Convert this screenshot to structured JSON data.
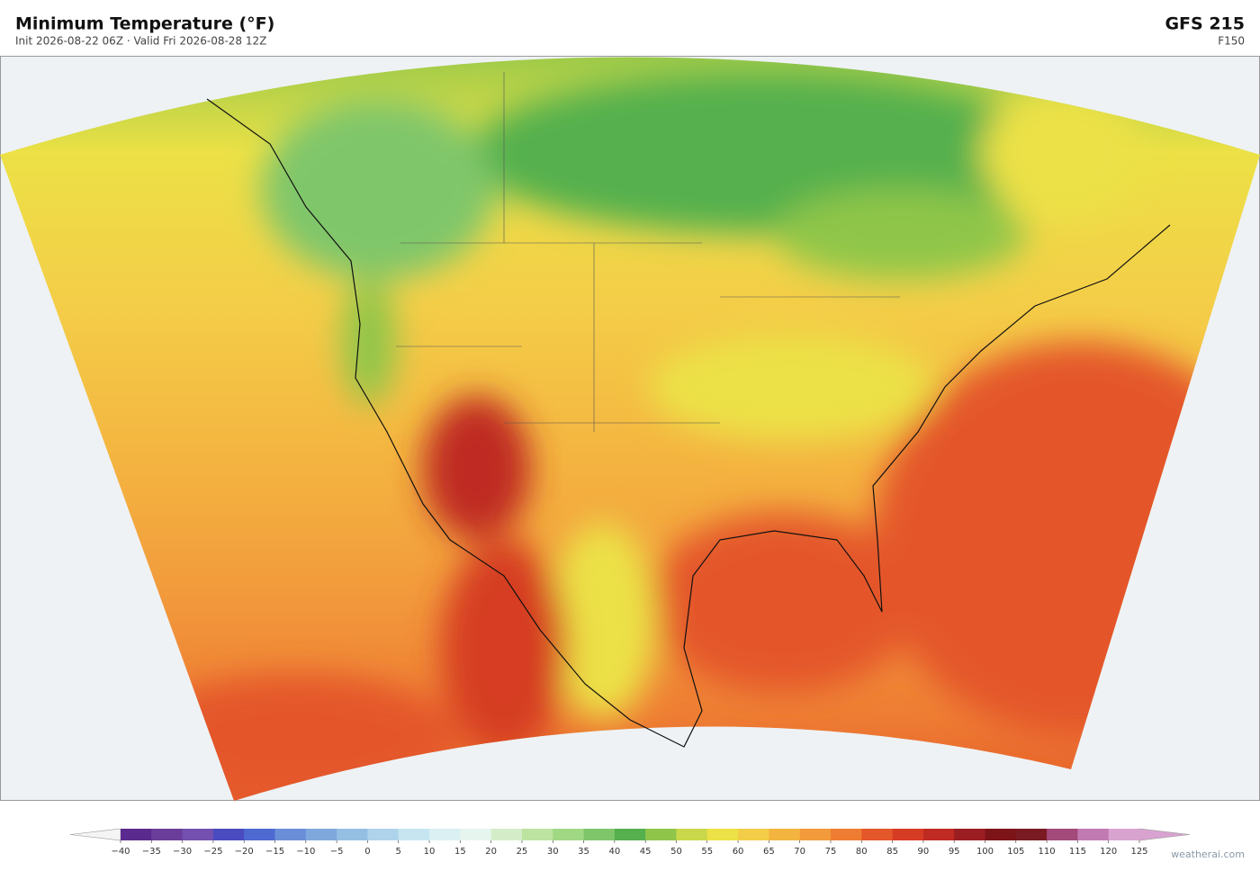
{
  "header": {
    "title": "Minimum Temperature  (°F)",
    "subtitle": "Init 2026-08-22 06Z   ·   Valid Fri 2026-08-28 12Z",
    "model": "GFS  215",
    "forecast_hour": "F150"
  },
  "colorbar": {
    "ticks": [
      "−40",
      "−35",
      "−30",
      "−25",
      "−20",
      "−15",
      "−10",
      "−5",
      "0",
      "5",
      "10",
      "15",
      "20",
      "25",
      "30",
      "35",
      "40",
      "45",
      "50",
      "55",
      "60",
      "65",
      "70",
      "75",
      "80",
      "85",
      "90",
      "95",
      "100",
      "105",
      "110",
      "115",
      "120",
      "125"
    ],
    "colors": [
      "#5b2a8f",
      "#6a3d9a",
      "#7450b0",
      "#4a4bbf",
      "#4e6ad0",
      "#6a8fd8",
      "#7fa8dd",
      "#94bfe3",
      "#aed3ea",
      "#c6e5f1",
      "#daf0f2",
      "#e6f5ee",
      "#d4edc8",
      "#bde3a0",
      "#a0d884",
      "#7fc66a",
      "#55b04d",
      "#8fc64a",
      "#c9d84a",
      "#ece146",
      "#f4cd48",
      "#f4b440",
      "#f29a3c",
      "#ee7d33",
      "#e4572a",
      "#d63c24",
      "#bf2a22",
      "#9a1e22",
      "#7d1418",
      "#7a1a22",
      "#a34a7a",
      "#c27ab2",
      "#d9a3cf"
    ],
    "under_color": "#f4f4f4",
    "over_color": "#d8a3d0"
  },
  "watermark": "weatherai.com"
}
